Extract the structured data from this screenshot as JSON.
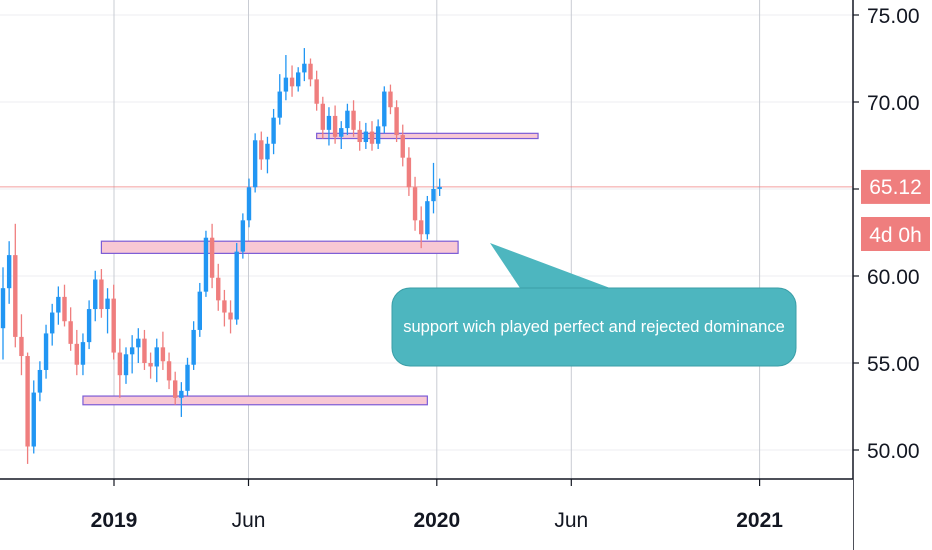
{
  "chart_data": {
    "type": "candlestick",
    "y_axis": {
      "side": "right",
      "ticks": [
        "75.00",
        "70.00",
        "65.00",
        "60.00",
        "55.00",
        "50.00"
      ],
      "range": [
        48.5,
        75.8
      ]
    },
    "x_axis": {
      "labels": [
        {
          "text": "2019",
          "date": "2019-01",
          "bold": true
        },
        {
          "text": "Jun",
          "date": "2019-06",
          "bold": false
        },
        {
          "text": "2020",
          "date": "2020-01",
          "bold": true
        },
        {
          "text": "Jun",
          "date": "2020-06",
          "bold": false
        },
        {
          "text": "2021",
          "date": "2021-01",
          "bold": true
        }
      ]
    },
    "grid": true,
    "last_price": {
      "value": "65.12",
      "level": 65.12,
      "countdown": "4d 0h",
      "color": "#ef7e7e"
    },
    "colors": {
      "up": "#2196f3",
      "down": "#ef7e7e",
      "zone_fill": "#f8c8d4",
      "zone_border": "#7b5cd6",
      "callout": "#4db6bf"
    },
    "zones": [
      {
        "from_week": 51,
        "to_week": 87,
        "low": 67.9,
        "high": 68.2
      },
      {
        "from_week": 16,
        "to_week": 74,
        "low": 61.3,
        "high": 62.0
      },
      {
        "from_week": 13,
        "to_week": 69,
        "low": 52.6,
        "high": 53.1
      }
    ],
    "annotations": [
      {
        "text": "support wich played perfect and rejected dominance"
      }
    ],
    "candles": [
      [
        57.0,
        60.5,
        55.2,
        59.3
      ],
      [
        59.3,
        62.0,
        58.4,
        61.2
      ],
      [
        61.2,
        63.0,
        55.9,
        56.5
      ],
      [
        56.5,
        57.8,
        54.3,
        55.4
      ],
      [
        55.4,
        55.6,
        49.2,
        50.2
      ],
      [
        50.2,
        54.0,
        49.8,
        53.3
      ],
      [
        53.3,
        55.1,
        52.8,
        54.6
      ],
      [
        54.6,
        57.2,
        54.1,
        56.7
      ],
      [
        56.7,
        58.4,
        56.0,
        57.9
      ],
      [
        57.9,
        59.4,
        57.2,
        58.8
      ],
      [
        58.8,
        59.5,
        57.1,
        57.4
      ],
      [
        57.4,
        58.2,
        55.7,
        56.1
      ],
      [
        56.1,
        56.9,
        54.3,
        54.9
      ],
      [
        54.9,
        56.7,
        54.3,
        56.2
      ],
      [
        56.2,
        58.6,
        55.8,
        58.1
      ],
      [
        58.1,
        60.3,
        57.4,
        59.8
      ],
      [
        59.8,
        60.4,
        57.6,
        58.1
      ],
      [
        58.1,
        59.3,
        56.7,
        58.7
      ],
      [
        58.7,
        59.5,
        55.2,
        55.6
      ],
      [
        55.6,
        56.4,
        53.0,
        54.3
      ],
      [
        54.3,
        55.9,
        53.8,
        55.5
      ],
      [
        55.5,
        56.6,
        54.4,
        55.9
      ],
      [
        55.9,
        57.0,
        55.0,
        56.4
      ],
      [
        56.4,
        56.9,
        54.6,
        55.0
      ],
      [
        55.0,
        55.6,
        54.1,
        54.8
      ],
      [
        54.8,
        56.4,
        53.9,
        55.9
      ],
      [
        55.9,
        56.8,
        54.6,
        55.1
      ],
      [
        55.1,
        55.6,
        53.5,
        54.0
      ],
      [
        54.0,
        54.5,
        52.6,
        53.0
      ],
      [
        53.0,
        53.9,
        51.9,
        53.4
      ],
      [
        53.4,
        55.3,
        53.1,
        54.9
      ],
      [
        54.9,
        57.4,
        54.6,
        56.9
      ],
      [
        56.9,
        59.6,
        56.5,
        59.1
      ],
      [
        59.1,
        62.6,
        58.8,
        62.2
      ],
      [
        62.2,
        63.0,
        59.3,
        59.9
      ],
      [
        59.9,
        60.7,
        58.0,
        58.6
      ],
      [
        58.6,
        59.2,
        57.1,
        57.9
      ],
      [
        57.9,
        58.6,
        56.7,
        57.5
      ],
      [
        57.5,
        61.9,
        57.2,
        61.4
      ],
      [
        61.4,
        63.6,
        61.0,
        63.2
      ],
      [
        63.2,
        65.6,
        62.8,
        65.1
      ],
      [
        65.1,
        68.2,
        64.8,
        67.8
      ],
      [
        67.8,
        68.3,
        66.1,
        66.7
      ],
      [
        66.7,
        68.0,
        65.9,
        67.6
      ],
      [
        67.6,
        69.6,
        67.0,
        69.1
      ],
      [
        69.1,
        71.6,
        68.7,
        70.6
      ],
      [
        70.6,
        72.7,
        70.1,
        71.4
      ],
      [
        71.4,
        72.1,
        70.3,
        70.9
      ],
      [
        70.9,
        72.0,
        70.6,
        71.7
      ],
      [
        71.7,
        73.1,
        71.2,
        72.2
      ],
      [
        72.2,
        72.5,
        70.9,
        71.3
      ],
      [
        71.3,
        71.8,
        69.5,
        69.9
      ],
      [
        69.9,
        70.3,
        67.9,
        68.4
      ],
      [
        68.4,
        69.7,
        67.5,
        69.2
      ],
      [
        69.2,
        69.8,
        67.6,
        68.0
      ],
      [
        68.0,
        68.9,
        67.3,
        68.5
      ],
      [
        68.5,
        69.9,
        68.1,
        69.5
      ],
      [
        69.5,
        70.1,
        68.0,
        68.4
      ],
      [
        68.4,
        68.9,
        67.2,
        67.7
      ],
      [
        67.7,
        68.8,
        67.3,
        68.3
      ],
      [
        68.3,
        68.9,
        67.2,
        67.6
      ],
      [
        67.6,
        69.0,
        67.3,
        68.6
      ],
      [
        68.6,
        70.9,
        68.2,
        70.6
      ],
      [
        70.6,
        71.0,
        69.3,
        69.7
      ],
      [
        69.7,
        70.1,
        67.7,
        68.1
      ],
      [
        68.1,
        68.7,
        66.3,
        66.8
      ],
      [
        66.8,
        67.4,
        64.6,
        65.1
      ],
      [
        65.1,
        65.7,
        62.6,
        63.2
      ],
      [
        63.2,
        64.0,
        61.6,
        62.4
      ],
      [
        62.4,
        64.6,
        62.1,
        64.3
      ],
      [
        64.3,
        66.5,
        63.6,
        65.0
      ],
      [
        65.0,
        65.6,
        64.6,
        65.12
      ]
    ]
  }
}
